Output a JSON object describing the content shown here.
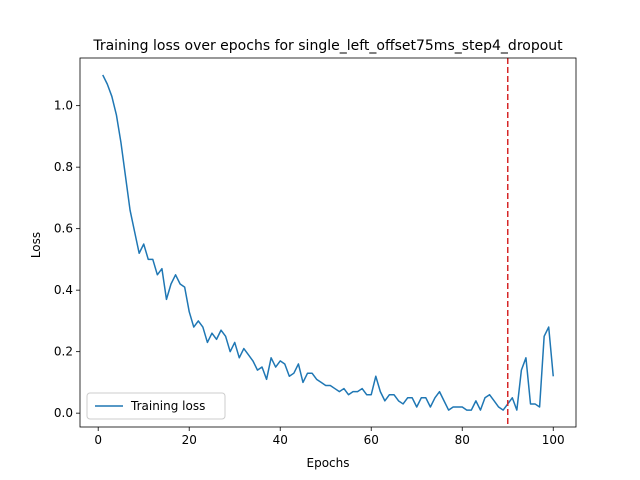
{
  "chart_data": {
    "type": "line",
    "title": "Training loss over epochs for single_left_offset75ms_step4_dropout",
    "xlabel": "Epochs",
    "ylabel": "Loss",
    "xlim": [
      -4,
      105
    ],
    "ylim": [
      -0.045,
      1.155
    ],
    "xticks": [
      0,
      20,
      40,
      60,
      80,
      100
    ],
    "yticks": [
      0.0,
      0.2,
      0.4,
      0.6,
      0.8,
      1.0
    ],
    "ytick_labels": [
      "0.0",
      "0.2",
      "0.4",
      "0.6",
      "0.8",
      "1.0"
    ],
    "grid": false,
    "legend_position": "lower-left",
    "series": [
      {
        "name": "Training loss",
        "color": "#1f77b4",
        "x": [
          1,
          2,
          3,
          4,
          5,
          6,
          7,
          8,
          9,
          10,
          11,
          12,
          13,
          14,
          15,
          16,
          17,
          18,
          19,
          20,
          21,
          22,
          23,
          24,
          25,
          26,
          27,
          28,
          29,
          30,
          31,
          32,
          33,
          34,
          35,
          36,
          37,
          38,
          39,
          40,
          41,
          42,
          43,
          44,
          45,
          46,
          47,
          48,
          49,
          50,
          51,
          52,
          53,
          54,
          55,
          56,
          57,
          58,
          59,
          60,
          61,
          62,
          63,
          64,
          65,
          66,
          67,
          68,
          69,
          70,
          71,
          72,
          73,
          74,
          75,
          76,
          77,
          78,
          79,
          80,
          81,
          82,
          83,
          84,
          85,
          86,
          87,
          88,
          89,
          90,
          91,
          92,
          93,
          94,
          95,
          96,
          97,
          98,
          99,
          100
        ],
        "y": [
          1.1,
          1.07,
          1.03,
          0.97,
          0.88,
          0.77,
          0.66,
          0.59,
          0.52,
          0.55,
          0.5,
          0.5,
          0.45,
          0.47,
          0.37,
          0.42,
          0.45,
          0.42,
          0.41,
          0.33,
          0.28,
          0.3,
          0.28,
          0.23,
          0.26,
          0.24,
          0.27,
          0.25,
          0.2,
          0.23,
          0.18,
          0.21,
          0.19,
          0.17,
          0.14,
          0.15,
          0.11,
          0.18,
          0.15,
          0.17,
          0.16,
          0.12,
          0.13,
          0.16,
          0.1,
          0.13,
          0.13,
          0.11,
          0.1,
          0.09,
          0.09,
          0.08,
          0.07,
          0.08,
          0.06,
          0.07,
          0.07,
          0.08,
          0.06,
          0.06,
          0.12,
          0.07,
          0.04,
          0.06,
          0.06,
          0.04,
          0.03,
          0.05,
          0.05,
          0.02,
          0.05,
          0.05,
          0.02,
          0.05,
          0.07,
          0.04,
          0.01,
          0.02,
          0.02,
          0.02,
          0.01,
          0.01,
          0.04,
          0.01,
          0.05,
          0.06,
          0.04,
          0.02,
          0.01,
          0.03,
          0.05,
          0.01,
          0.14,
          0.18,
          0.03,
          0.03,
          0.02,
          0.25,
          0.28,
          0.12
        ]
      }
    ],
    "vline": {
      "x": 90,
      "color": "#d62728",
      "style": "dashed"
    }
  }
}
